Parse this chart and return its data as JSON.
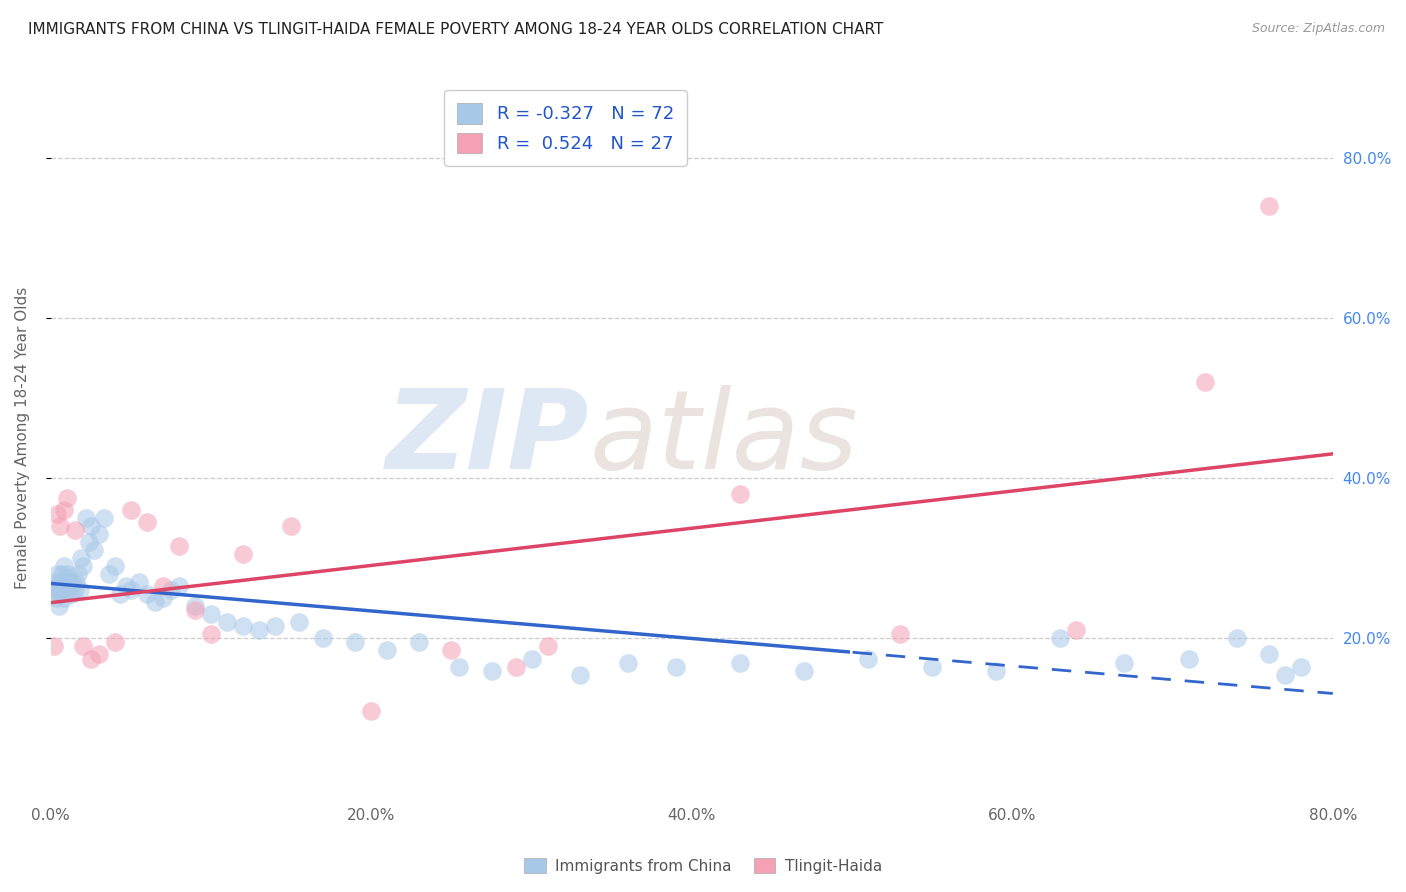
{
  "title": "IMMIGRANTS FROM CHINA VS TLINGIT-HAIDA FEMALE POVERTY AMONG 18-24 YEAR OLDS CORRELATION CHART",
  "source": "Source: ZipAtlas.com",
  "ylabel": "Female Poverty Among 18-24 Year Olds",
  "series1_name": "Immigrants from China",
  "series2_name": "Tlingit-Haida",
  "series1_color": "#a8c8e8",
  "series2_color": "#f4a0b5",
  "series1_R": -0.327,
  "series1_N": 72,
  "series2_R": 0.524,
  "series2_N": 27,
  "series1_line_color": "#3366cc",
  "series2_line_color": "#dd4466",
  "background_color": "#ffffff",
  "grid_color": "#cccccc",
  "watermark_zip": "ZIP",
  "watermark_atlas": "atlas",
  "xlim": [
    0.0,
    0.8
  ],
  "ylim": [
    0.0,
    0.9
  ],
  "x_ticks": [
    0.0,
    0.2,
    0.4,
    0.6,
    0.8
  ],
  "y_ticks_right": [
    0.2,
    0.4,
    0.6,
    0.8
  ],
  "series1_x": [
    0.002,
    0.003,
    0.003,
    0.004,
    0.004,
    0.005,
    0.005,
    0.006,
    0.006,
    0.007,
    0.007,
    0.008,
    0.008,
    0.009,
    0.01,
    0.01,
    0.011,
    0.012,
    0.013,
    0.014,
    0.015,
    0.016,
    0.017,
    0.018,
    0.019,
    0.02,
    0.022,
    0.024,
    0.025,
    0.027,
    0.03,
    0.033,
    0.036,
    0.04,
    0.043,
    0.047,
    0.05,
    0.055,
    0.06,
    0.065,
    0.07,
    0.075,
    0.08,
    0.09,
    0.1,
    0.11,
    0.12,
    0.13,
    0.14,
    0.155,
    0.17,
    0.19,
    0.21,
    0.23,
    0.255,
    0.275,
    0.3,
    0.33,
    0.36,
    0.39,
    0.43,
    0.47,
    0.51,
    0.55,
    0.59,
    0.63,
    0.67,
    0.71,
    0.74,
    0.76,
    0.77,
    0.78
  ],
  "series1_y": [
    0.26,
    0.27,
    0.25,
    0.26,
    0.28,
    0.24,
    0.265,
    0.255,
    0.27,
    0.26,
    0.28,
    0.25,
    0.29,
    0.27,
    0.28,
    0.26,
    0.275,
    0.265,
    0.255,
    0.27,
    0.26,
    0.27,
    0.28,
    0.26,
    0.3,
    0.29,
    0.35,
    0.32,
    0.34,
    0.31,
    0.33,
    0.35,
    0.28,
    0.29,
    0.255,
    0.265,
    0.26,
    0.27,
    0.255,
    0.245,
    0.25,
    0.26,
    0.265,
    0.24,
    0.23,
    0.22,
    0.215,
    0.21,
    0.215,
    0.22,
    0.2,
    0.195,
    0.185,
    0.195,
    0.165,
    0.16,
    0.175,
    0.155,
    0.17,
    0.165,
    0.17,
    0.16,
    0.175,
    0.165,
    0.16,
    0.2,
    0.17,
    0.175,
    0.2,
    0.18,
    0.155,
    0.165
  ],
  "series2_x": [
    0.002,
    0.004,
    0.006,
    0.008,
    0.01,
    0.015,
    0.02,
    0.025,
    0.03,
    0.04,
    0.05,
    0.06,
    0.07,
    0.08,
    0.09,
    0.1,
    0.12,
    0.15,
    0.2,
    0.25,
    0.29,
    0.31,
    0.43,
    0.53,
    0.64,
    0.72,
    0.76
  ],
  "series2_y": [
    0.19,
    0.355,
    0.34,
    0.36,
    0.375,
    0.335,
    0.19,
    0.175,
    0.18,
    0.195,
    0.36,
    0.345,
    0.265,
    0.315,
    0.235,
    0.205,
    0.305,
    0.34,
    0.11,
    0.185,
    0.165,
    0.19,
    0.38,
    0.205,
    0.21,
    0.52,
    0.74
  ],
  "legend_fontsize": 13,
  "title_fontsize": 11,
  "axis_label_fontsize": 11,
  "tick_fontsize": 11,
  "blue_line_solid_end": 0.5,
  "blue_line_dash_end": 0.8
}
